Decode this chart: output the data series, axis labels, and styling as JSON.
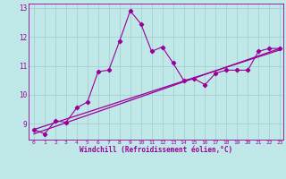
{
  "xlabel": "Windchill (Refroidissement éolien,°C)",
  "background_color": "#c0e8e8",
  "grid_color": "#a0cccc",
  "line_color": "#990099",
  "xlim": [
    -0.5,
    23.3
  ],
  "ylim": [
    8.45,
    13.15
  ],
  "xticks": [
    0,
    1,
    2,
    3,
    4,
    5,
    6,
    7,
    8,
    9,
    10,
    11,
    12,
    13,
    14,
    15,
    16,
    17,
    18,
    19,
    20,
    21,
    22,
    23
  ],
  "yticks": [
    9,
    10,
    11,
    12,
    13
  ],
  "series1_x": [
    0,
    1,
    2,
    3,
    4,
    5,
    6,
    7,
    8,
    9,
    10,
    11,
    12,
    13,
    14,
    15,
    16,
    17,
    18,
    19,
    20,
    21,
    22,
    23
  ],
  "series1_y": [
    8.8,
    8.65,
    9.1,
    9.05,
    9.55,
    9.75,
    10.8,
    10.85,
    11.85,
    12.9,
    12.45,
    11.5,
    11.65,
    11.1,
    10.5,
    10.55,
    10.35,
    10.75,
    10.85,
    10.85,
    10.85,
    11.5,
    11.6,
    11.6
  ],
  "trend1_x": [
    0,
    23
  ],
  "trend1_y": [
    8.8,
    11.55
  ],
  "trend2_x": [
    0,
    23
  ],
  "trend2_y": [
    8.65,
    11.6
  ]
}
